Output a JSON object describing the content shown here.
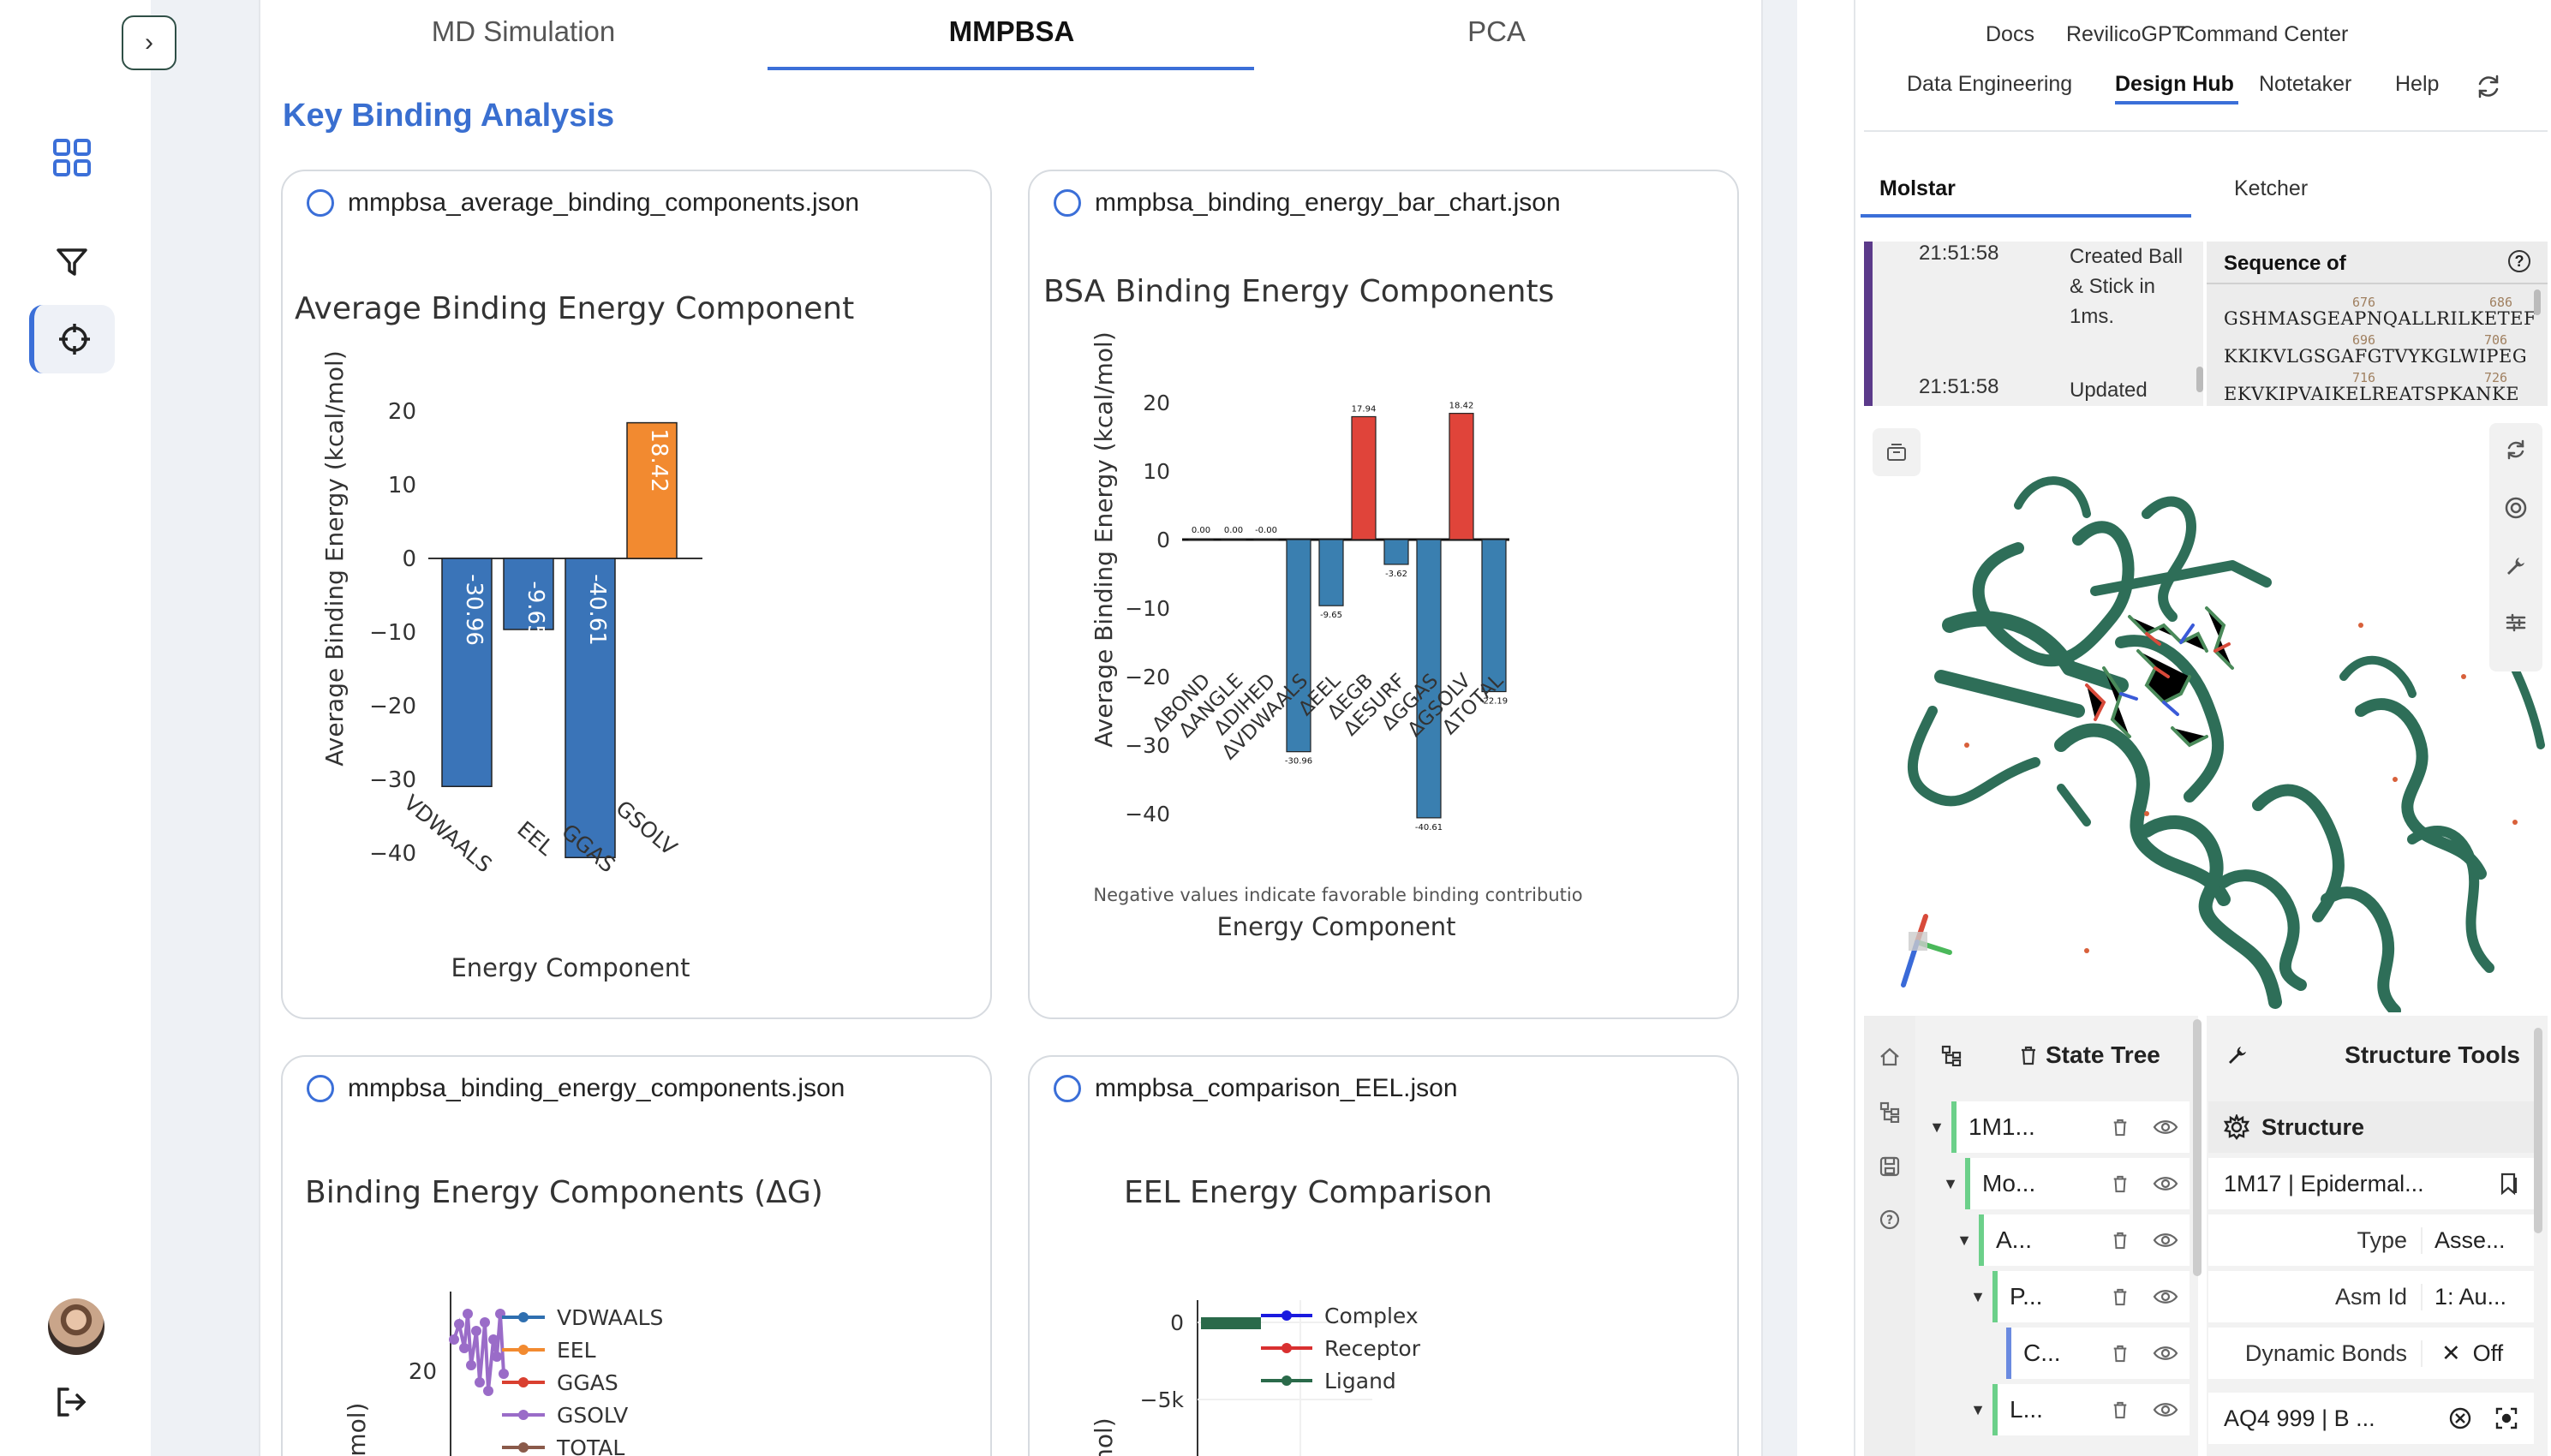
{
  "tabs": [
    {
      "label": "MD Simulation"
    },
    {
      "label": "MMPBSA"
    },
    {
      "label": "PCA"
    }
  ],
  "section_title": "Key Binding Analysis",
  "cards": [
    {
      "filename": "mmpbsa_average_binding_components.json",
      "chart_data": {
        "type": "bar",
        "title": "Average Binding Energy Component",
        "xlabel": "Energy Component",
        "ylabel": "Average Binding Energy (kcal/mol)",
        "categories": [
          "VDWAALS",
          "EEL",
          "GGAS",
          "GSOLV"
        ],
        "values": [
          -30.96,
          -9.65,
          -40.61,
          18.42
        ],
        "data_labels": [
          "-30.96",
          "-9.65",
          "-40.61",
          "18.42"
        ],
        "colors": [
          "#3a74b8",
          "#3a74b8",
          "#3a74b8",
          "#f28a30"
        ],
        "yticks": [
          "20",
          "10",
          "0",
          "−10",
          "−20",
          "−30",
          "−40"
        ],
        "ylim": [
          -42,
          22
        ]
      }
    },
    {
      "filename": "mmpbsa_binding_energy_bar_chart.json",
      "chart_data": {
        "type": "bar",
        "title": "BSA Binding Energy Components",
        "xlabel": "Energy Component",
        "ylabel": "Average Binding Energy (kcal/mol)",
        "annotation": "Negative values indicate favorable binding contributio",
        "categories": [
          "ΔBOND",
          "ΔANGLE",
          "ΔDIHED",
          "ΔVDWAALS",
          "ΔEEL",
          "ΔEGB",
          "ΔESURF",
          "ΔGGAS",
          "ΔGSOLV",
          "ΔTOTAL"
        ],
        "values": [
          0.0,
          0.0,
          -0.0,
          -30.96,
          -9.65,
          17.94,
          -3.62,
          -40.61,
          18.42,
          -22.19
        ],
        "data_labels": [
          "0.00",
          "0.00",
          "-0.00",
          "-30.96",
          "-9.65",
          "17.94",
          "-3.62",
          "-40.61",
          "18.42",
          "-22.19"
        ],
        "colors": [
          "#3a7fb0",
          "#3a7fb0",
          "#3a7fb0",
          "#3a7fb0",
          "#3a7fb0",
          "#e0443a",
          "#3a7fb0",
          "#3a7fb0",
          "#e0443a",
          "#3a7fb0"
        ],
        "yticks": [
          "20",
          "10",
          "0",
          "−10",
          "−20",
          "−30",
          "−40"
        ],
        "ylim": [
          -42,
          22
        ]
      }
    },
    {
      "filename": "mmpbsa_binding_energy_components.json",
      "chart_data": {
        "type": "line",
        "title": "Binding Energy Components (ΔG)",
        "ylabel": "cal/mol)",
        "legend": [
          "VDWAALS",
          "EEL",
          "GGAS",
          "GSOLV",
          "TOTAL"
        ],
        "legend_colors": [
          "#2f6fb0",
          "#f28a30",
          "#d94030",
          "#9a6cc8",
          "#8a5a4a"
        ],
        "yticks": [
          "20"
        ]
      }
    },
    {
      "filename": "mmpbsa_comparison_EEL.json",
      "chart_data": {
        "type": "line",
        "title": "EEL Energy Comparison",
        "ylabel": "al/mol)",
        "legend": [
          "Complex",
          "Receptor",
          "Ligand"
        ],
        "legend_colors": [
          "#1a1adf",
          "#d93030",
          "#2a6a4a"
        ],
        "yticks": [
          "0",
          "−5k"
        ]
      }
    }
  ],
  "topnav": {
    "row1": [
      "Docs",
      "RevilicoGPT",
      "Command Center"
    ],
    "row2": [
      "Data Engineering",
      "Design Hub",
      "Notetaker",
      "Help"
    ]
  },
  "viewer_tabs": [
    "Molstar",
    "Ketcher"
  ],
  "log": [
    {
      "time": "21:51:58",
      "msg": "Created Ball & Stick in 1ms."
    },
    {
      "time": "21:51:58",
      "msg": "Updated"
    }
  ],
  "sequence": {
    "title": "Sequence of",
    "numbers": [
      "676",
      "686",
      "696",
      "706",
      "716",
      "726"
    ],
    "lines": [
      "GSHMASGEAPNQALLRILKETEF",
      "KKIKVLGSGAFGTVYKGLWIPEG",
      "EKVKIPVAIKELREATSPKANKE"
    ]
  },
  "state_tree": {
    "title": "State Tree",
    "rows": [
      "1M1...",
      "Mo...",
      "A...",
      "P...",
      "C...",
      "L..."
    ]
  },
  "structure_tools": {
    "title": "Structure Tools",
    "section": "Structure",
    "selected": "1M17 | Epidermal...",
    "props": [
      {
        "label": "Type",
        "value": "Asse..."
      },
      {
        "label": "Asm Id",
        "value": "1: Au..."
      },
      {
        "label": "Dynamic Bonds",
        "value": "Off"
      }
    ],
    "ligand": "AQ4 999 | B ..."
  },
  "colors": {
    "accent": "#3b6fd8",
    "protein": "#2e6e58"
  }
}
